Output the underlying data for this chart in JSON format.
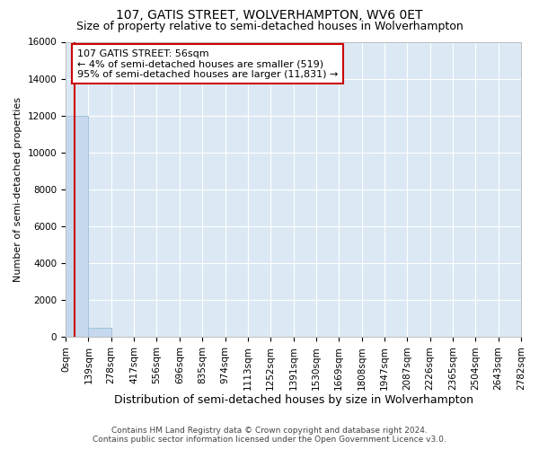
{
  "title": "107, GATIS STREET, WOLVERHAMPTON, WV6 0ET",
  "subtitle": "Size of property relative to semi-detached houses in Wolverhampton",
  "xlabel": "Distribution of semi-detached houses by size in Wolverhampton",
  "ylabel": "Number of semi-detached properties",
  "footer1": "Contains HM Land Registry data © Crown copyright and database right 2024.",
  "footer2": "Contains public sector information licensed under the Open Government Licence v3.0.",
  "bar_edges": [
    0,
    139,
    278,
    417,
    556,
    696,
    835,
    974,
    1113,
    1252,
    1391,
    1530,
    1669,
    1808,
    1947,
    2087,
    2226,
    2365,
    2504,
    2643,
    2782
  ],
  "bar_heights": [
    12000,
    500,
    0,
    0,
    0,
    0,
    0,
    0,
    0,
    0,
    0,
    0,
    0,
    0,
    0,
    0,
    0,
    0,
    0,
    0
  ],
  "bar_color": "#c5d8ee",
  "bar_edgecolor": "#9bbdd9",
  "vline_color": "#cc0000",
  "vline_x": 56,
  "annotation_text_line1": "107 GATIS STREET: 56sqm",
  "annotation_text_line2": "← 4% of semi-detached houses are smaller (519)",
  "annotation_text_line3": "95% of semi-detached houses are larger (11,831) →",
  "annotation_box_color": "#cc0000",
  "ylim": [
    0,
    16000
  ],
  "yticks": [
    0,
    2000,
    4000,
    6000,
    8000,
    10000,
    12000,
    14000,
    16000
  ],
  "background_color": "#dce9f5",
  "grid_color": "#ffffff",
  "fig_background": "#ffffff",
  "title_fontsize": 10,
  "subtitle_fontsize": 9,
  "xlabel_fontsize": 9,
  "ylabel_fontsize": 8,
  "tick_fontsize": 7.5,
  "annotation_fontsize": 8,
  "footer_fontsize": 6.5
}
